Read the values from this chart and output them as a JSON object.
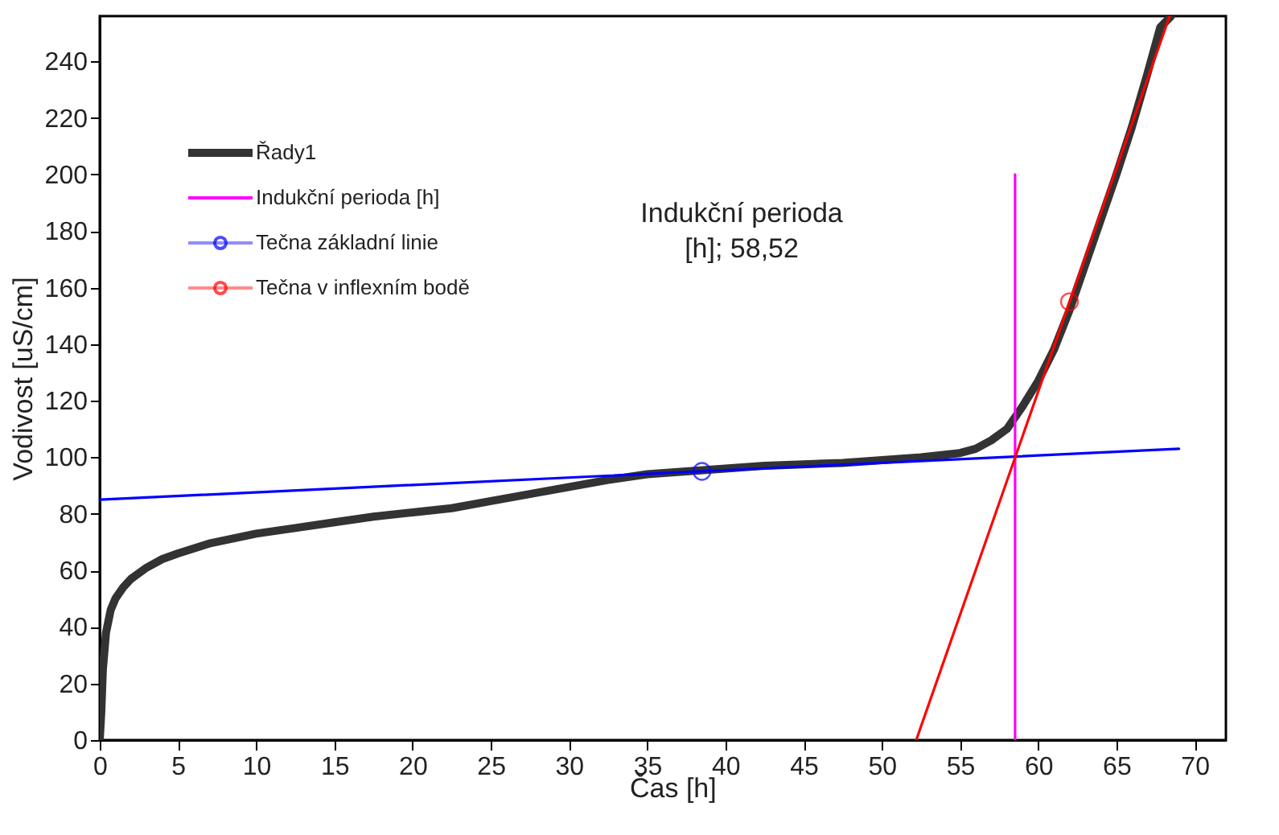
{
  "chart_data": {
    "type": "line",
    "xlabel": "Čas [h]",
    "ylabel": "Vodivost [uS/cm]",
    "xlim": [
      0,
      72
    ],
    "ylim": [
      0,
      256
    ],
    "xticks": [
      0,
      5,
      10,
      15,
      20,
      25,
      30,
      35,
      40,
      45,
      50,
      55,
      60,
      65,
      70
    ],
    "yticks": [
      0,
      20,
      40,
      60,
      80,
      100,
      120,
      140,
      160,
      180,
      200,
      220,
      240
    ],
    "grid": false,
    "legend": "top left",
    "line_style": "solid",
    "annotations": [
      "Indukční perioda\n[h]; 58,52"
    ],
    "series": [
      {
        "name": "Řady1",
        "color": "#333333",
        "x": [
          0,
          0.1,
          0.2,
          0.4,
          0.7,
          1,
          1.5,
          2,
          3,
          4,
          5,
          7,
          10,
          12.5,
          15,
          17.5,
          20,
          22.5,
          25,
          27.5,
          30,
          32.5,
          35,
          37.5,
          40,
          42.5,
          45,
          47.5,
          50,
          52.5,
          55,
          56,
          57,
          58,
          59,
          60,
          61,
          62,
          63,
          64,
          65,
          66,
          67,
          67.8,
          68.5
        ],
        "values": [
          0,
          10,
          25,
          38,
          46,
          50,
          54,
          57,
          61,
          64,
          66,
          69.5,
          73,
          75,
          77,
          79,
          80.5,
          82,
          84.5,
          87,
          89.5,
          92,
          94,
          95,
          96,
          97,
          97.5,
          98,
          99,
          100,
          101.5,
          103,
          106,
          110,
          118,
          127,
          138,
          152,
          168,
          184,
          200,
          217,
          236,
          252,
          256
        ]
      },
      {
        "name": "Indukční perioda [h]",
        "color": "#ff00ff",
        "x": [
          58.52,
          58.52
        ],
        "values": [
          0,
          200
        ]
      },
      {
        "name": "Tečna základní linie",
        "color": "#0000ff",
        "x": [
          0,
          69
        ],
        "values": [
          85,
          103
        ]
      },
      {
        "name": "Tečna v inflexním bodě",
        "color": "#ff0000",
        "x": [
          52.2,
          68.4
        ],
        "values": [
          0,
          256
        ]
      },
      {
        "type": "scatter",
        "color": "#0000ff",
        "marker": "circle",
        "x": [
          38.5
        ],
        "values": [
          95
        ]
      },
      {
        "type": "scatter",
        "color": "#ff0000",
        "marker": "circle",
        "x": [
          62
        ],
        "values": [
          155
        ]
      }
    ]
  }
}
